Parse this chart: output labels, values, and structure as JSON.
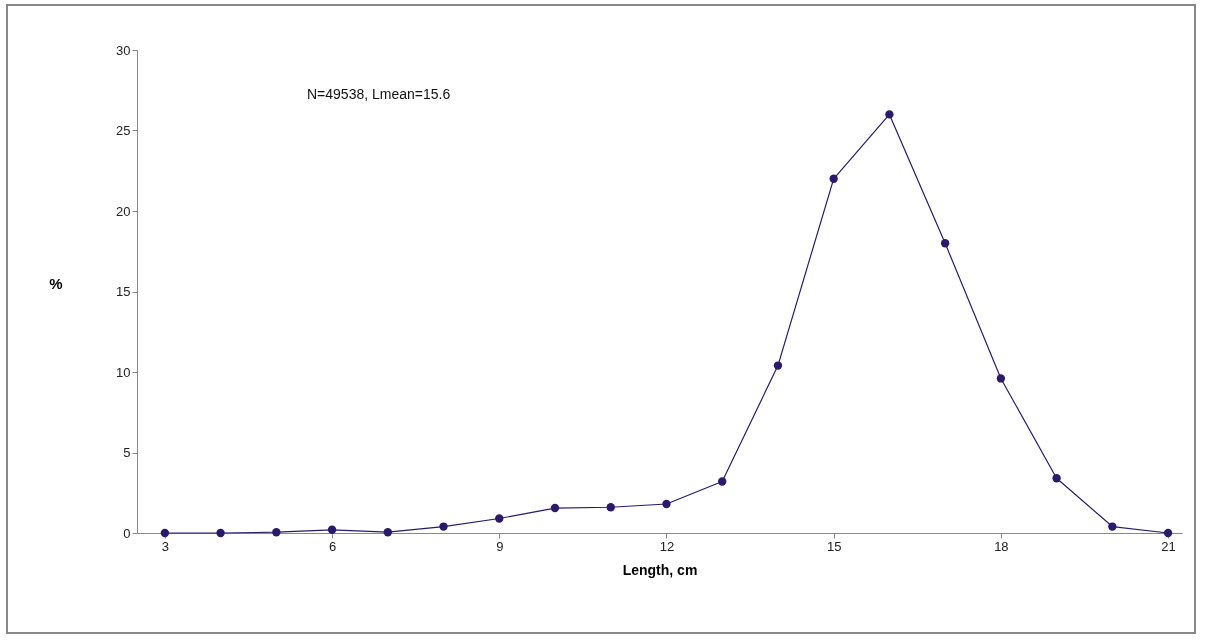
{
  "chart_data": {
    "type": "line",
    "xlabel": "Length, cm",
    "ylabel": "%",
    "annotations": [
      "N=49538, Lmean=15.6"
    ],
    "x": [
      3,
      4,
      5,
      6,
      7,
      8,
      9,
      10,
      11,
      12,
      13,
      14,
      15,
      16,
      17,
      18,
      19,
      20,
      21
    ],
    "series": [
      {
        "color": "#2b1a6b",
        "values": [
          0,
          0,
          0.05,
          0.2,
          0.05,
          0.4,
          0.9,
          1.55,
          1.6,
          1.8,
          3.2,
          10.4,
          22,
          26,
          18,
          9.6,
          3.4,
          0.4,
          0
        ]
      }
    ],
    "xlim": [
      2.5,
      21.25
    ],
    "xticks": [
      3,
      6,
      9,
      12,
      15,
      18,
      21
    ],
    "ylim": [
      0,
      30
    ],
    "yticks": [
      0,
      5,
      10,
      15,
      20,
      25,
      30
    ],
    "grid": false,
    "marker": "circle",
    "line_style": "solid"
  }
}
